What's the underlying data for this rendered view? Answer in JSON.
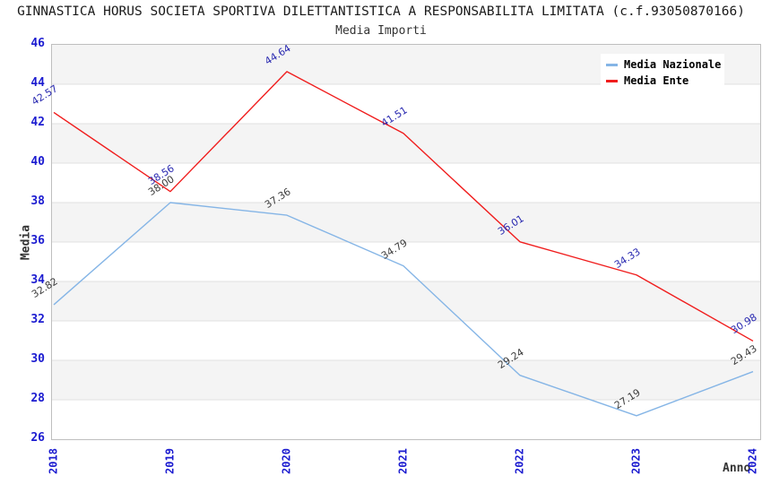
{
  "chart_data": {
    "type": "line",
    "title": "GINNASTICA HORUS SOCIETA SPORTIVA DILETTANTISTICA A RESPONSABILITA LIMITATA (c.f.93050870166)",
    "subtitle": "Media Importi",
    "x": [
      "2018",
      "2019",
      "2020",
      "2021",
      "2022",
      "2023",
      "2024"
    ],
    "series": [
      {
        "name": "Media Nazionale",
        "color": "#85b5e6",
        "label_color": "#3c3c3c",
        "values": [
          32.82,
          38.0,
          37.36,
          34.79,
          29.24,
          27.19,
          29.43
        ]
      },
      {
        "name": "Media Ente",
        "color": "#f01d1d",
        "label_color": "#2828b0",
        "values": [
          42.57,
          38.56,
          44.64,
          41.51,
          36.01,
          34.33,
          30.98
        ]
      }
    ],
    "xlabel": "Anno",
    "ylabel": "Media",
    "ylim": [
      26,
      46
    ],
    "ytick_step": 2,
    "yticks": [
      26,
      28,
      30,
      32,
      34,
      36,
      38,
      40,
      42,
      44,
      46
    ],
    "grid": "horizontal-bands",
    "band_colors": [
      "#f4f4f4",
      "#ffffff"
    ],
    "gridline_color": "#e0e0e0",
    "axis_tick_color": "#1b1bd0",
    "legend_position": "top-right",
    "value_label_decimals": 2
  }
}
